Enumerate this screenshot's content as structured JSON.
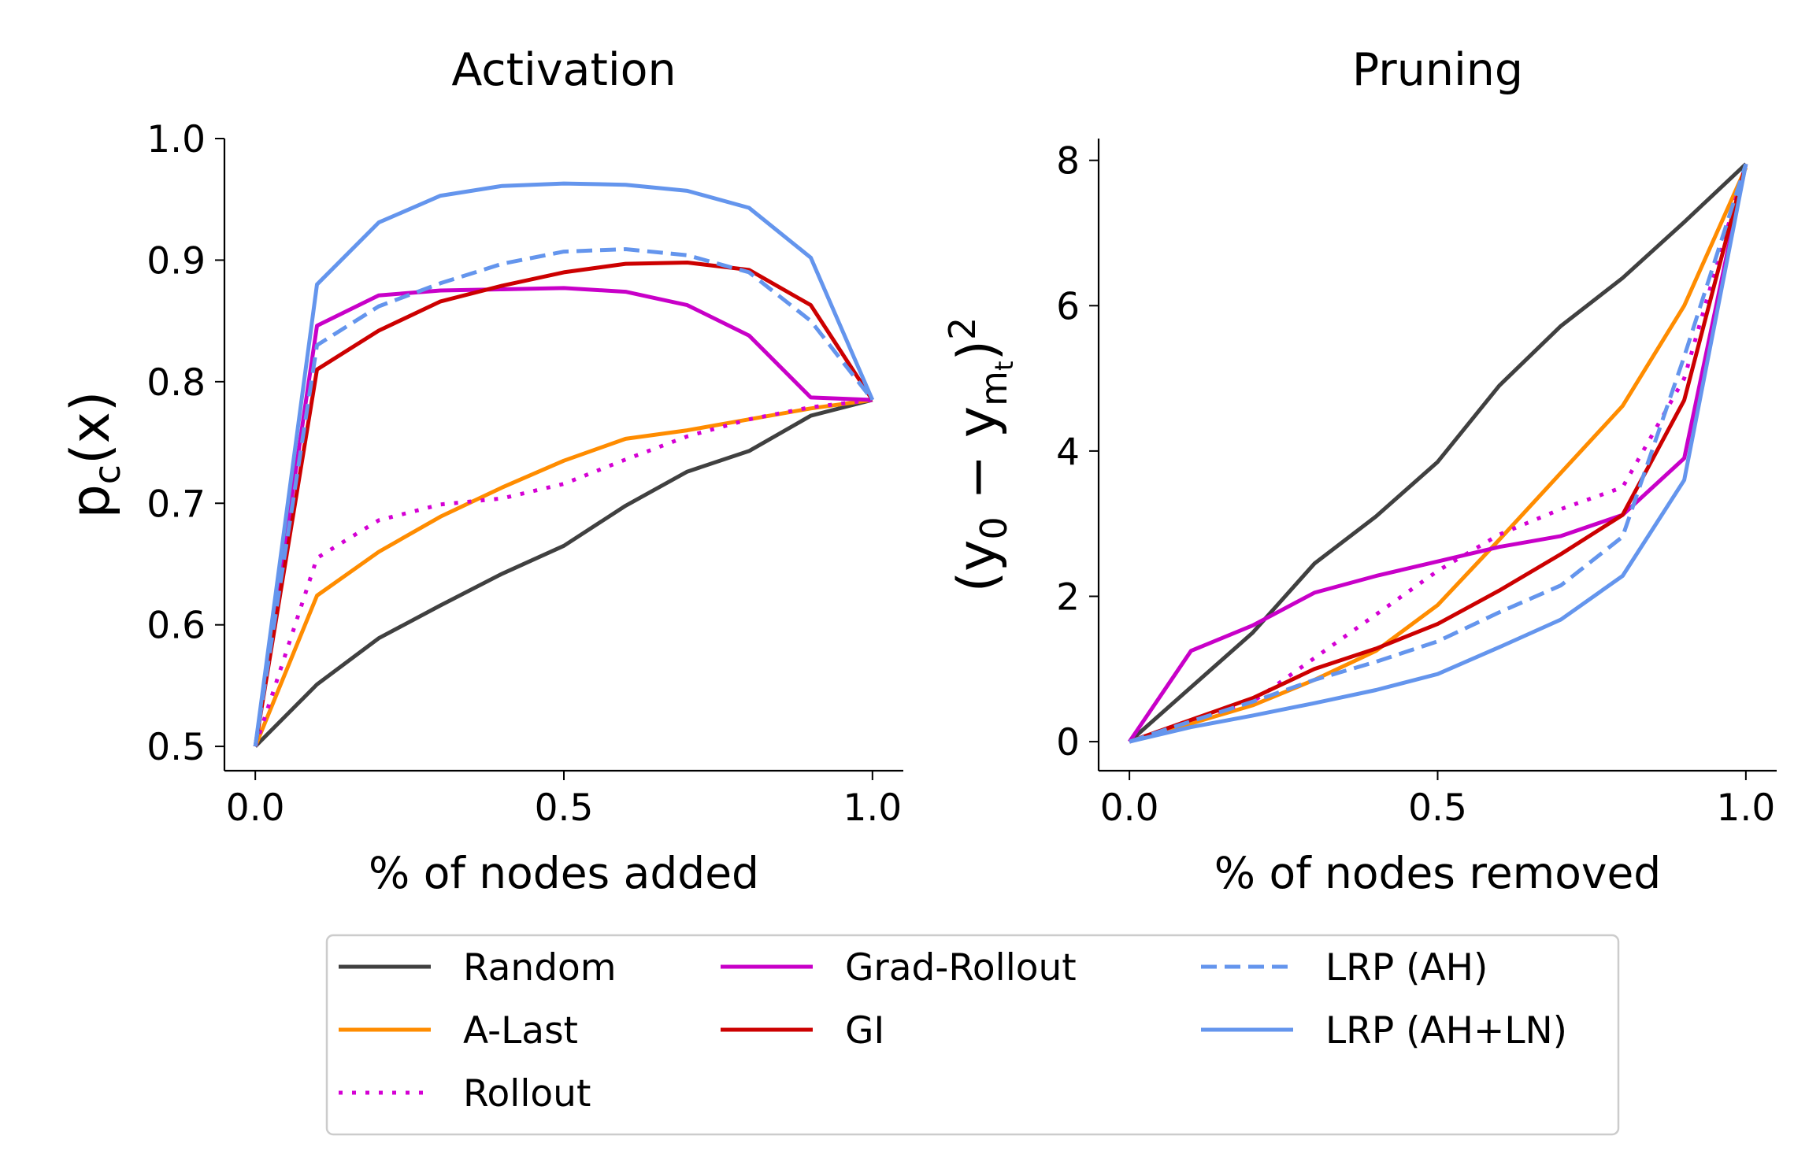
{
  "chart_data": [
    {
      "type": "line",
      "title": "Activation",
      "xlabel": "% of nodes added",
      "ylabel": "p_c(x)",
      "ylabel_parts": {
        "base": "p",
        "sub": "c",
        "rest": "(x)"
      },
      "xlim": [
        -0.05,
        1.05
      ],
      "ylim": [
        0.48,
        1.0
      ],
      "xticks": [
        0.0,
        0.5,
        1.0
      ],
      "xtick_labels": [
        "0.0",
        "0.5",
        "1.0"
      ],
      "yticks": [
        0.5,
        0.6,
        0.7,
        0.8,
        0.9,
        1.0
      ],
      "ytick_labels": [
        "0.5",
        "0.6",
        "0.7",
        "0.8",
        "0.9",
        "1.0"
      ],
      "x": [
        0.0,
        0.1,
        0.2,
        0.3,
        0.4,
        0.5,
        0.6,
        0.7,
        0.8,
        0.9,
        1.0
      ],
      "series": [
        {
          "name": "Random",
          "values": [
            0.5,
            0.551,
            0.589,
            0.616,
            0.642,
            0.665,
            0.698,
            0.726,
            0.743,
            0.772,
            0.785
          ]
        },
        {
          "name": "A-Last",
          "values": [
            0.5,
            0.624,
            0.66,
            0.689,
            0.713,
            0.735,
            0.753,
            0.76,
            0.769,
            0.778,
            0.785
          ]
        },
        {
          "name": "Rollout",
          "values": [
            0.5,
            0.655,
            0.686,
            0.699,
            0.704,
            0.716,
            0.736,
            0.755,
            0.769,
            0.779,
            0.785
          ]
        },
        {
          "name": "Grad-Rollout",
          "values": [
            0.5,
            0.846,
            0.871,
            0.875,
            0.876,
            0.877,
            0.874,
            0.863,
            0.838,
            0.787,
            0.785
          ]
        },
        {
          "name": "GI",
          "values": [
            0.5,
            0.81,
            0.842,
            0.866,
            0.879,
            0.89,
            0.897,
            0.898,
            0.892,
            0.863,
            0.785
          ]
        },
        {
          "name": "LRP (AH)",
          "values": [
            0.5,
            0.83,
            0.862,
            0.881,
            0.897,
            0.907,
            0.909,
            0.904,
            0.89,
            0.85,
            0.785
          ]
        },
        {
          "name": "LRP (AH+LN)",
          "values": [
            0.5,
            0.88,
            0.931,
            0.953,
            0.961,
            0.963,
            0.962,
            0.957,
            0.943,
            0.902,
            0.785
          ]
        }
      ]
    },
    {
      "type": "line",
      "title": "Pruning",
      "xlabel": "% of nodes removed",
      "ylabel": "(y_0 − y_{m_t})^2",
      "ylabel_parts": {
        "open": "(y",
        "sub0": "0",
        "minus": " − y",
        "subm": "m",
        "subt": "t",
        "close": ")",
        "sup": "2"
      },
      "xlim": [
        -0.05,
        1.05
      ],
      "ylim": [
        -0.4,
        8.3
      ],
      "xticks": [
        0.0,
        0.5,
        1.0
      ],
      "xtick_labels": [
        "0.0",
        "0.5",
        "1.0"
      ],
      "yticks": [
        0,
        2,
        4,
        6,
        8
      ],
      "ytick_labels": [
        "0",
        "2",
        "4",
        "6",
        "8"
      ],
      "x": [
        0.0,
        0.1,
        0.2,
        0.3,
        0.4,
        0.5,
        0.6,
        0.7,
        0.8,
        0.9,
        1.0
      ],
      "series": [
        {
          "name": "Random",
          "values": [
            0,
            0.75,
            1.5,
            2.45,
            3.1,
            3.85,
            4.9,
            5.72,
            6.38,
            7.15,
            7.95
          ]
        },
        {
          "name": "A-Last",
          "values": [
            0,
            0.25,
            0.5,
            0.85,
            1.25,
            1.88,
            2.78,
            3.7,
            4.62,
            6.0,
            7.9
          ]
        },
        {
          "name": "Rollout",
          "values": [
            0,
            0.3,
            0.55,
            1.15,
            1.75,
            2.35,
            2.85,
            3.2,
            3.5,
            5.0,
            7.95
          ]
        },
        {
          "name": "Grad-Rollout",
          "values": [
            0,
            1.25,
            1.6,
            2.05,
            2.28,
            2.48,
            2.68,
            2.83,
            3.12,
            3.9,
            7.95
          ]
        },
        {
          "name": "GI",
          "values": [
            0,
            0.3,
            0.6,
            1.0,
            1.28,
            1.62,
            2.08,
            2.58,
            3.12,
            4.7,
            7.95
          ]
        },
        {
          "name": "LRP (AH)",
          "values": [
            0,
            0.28,
            0.55,
            0.85,
            1.1,
            1.38,
            1.78,
            2.15,
            2.82,
            5.3,
            7.95
          ]
        },
        {
          "name": "LRP (AH+LN)",
          "values": [
            0,
            0.2,
            0.36,
            0.53,
            0.71,
            0.93,
            1.3,
            1.68,
            2.28,
            3.6,
            7.95
          ]
        }
      ]
    }
  ],
  "legend": {
    "placement": "bottom-center",
    "columns": 3,
    "entries": [
      {
        "label": "Random",
        "color": "#404040",
        "dash": "solid"
      },
      {
        "label": "A-Last",
        "color": "#ff8c00",
        "dash": "solid"
      },
      {
        "label": "Rollout",
        "color": "#d400d4",
        "dash": "dotted"
      },
      {
        "label": "Grad-Rollout",
        "color": "#c800c8",
        "dash": "solid"
      },
      {
        "label": "GI",
        "color": "#cc0000",
        "dash": "solid"
      },
      {
        "label": "LRP (AH)",
        "color": "#6495ed",
        "dash": "dashed"
      },
      {
        "label": "LRP (AH+LN)",
        "color": "#6495ed",
        "dash": "solid"
      }
    ]
  }
}
